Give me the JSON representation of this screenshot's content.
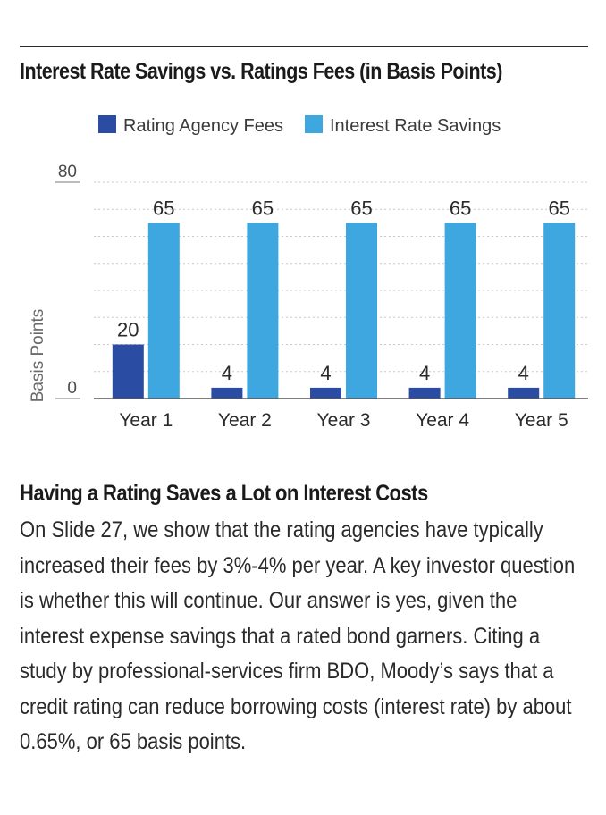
{
  "chart_data": {
    "type": "bar",
    "title": "Interest Rate Savings vs. Ratings Fees (in Basis Points)",
    "categories": [
      "Year 1",
      "Year 2",
      "Year 3",
      "Year 4",
      "Year 5"
    ],
    "series": [
      {
        "name": "Rating Agency Fees",
        "values": [
          20,
          4,
          4,
          4,
          4
        ],
        "color": "#2a4ca3"
      },
      {
        "name": "Interest Rate Savings",
        "values": [
          65,
          65,
          65,
          65,
          65
        ],
        "color": "#3fa7e0"
      }
    ],
    "ylabel": "Basis Points",
    "xlabel": "",
    "ylim": [
      0,
      80
    ],
    "yticks": [
      "0",
      "80"
    ],
    "grid": true,
    "legend": "top"
  },
  "article": {
    "heading": "Having a Rating Saves a Lot on Interest Costs",
    "body": "On Slide 27, we show that the rating agencies have typically increased their fees by 3%-4% per year. A key investor question is whether this will continue. Our answer is yes, given the interest expense savings that a rated bond garners. Citing a study by professional-services firm BDO, Moody’s says that a credit rating can reduce borrowing costs (interest rate) by about 0.65%, or 65 basis points."
  }
}
